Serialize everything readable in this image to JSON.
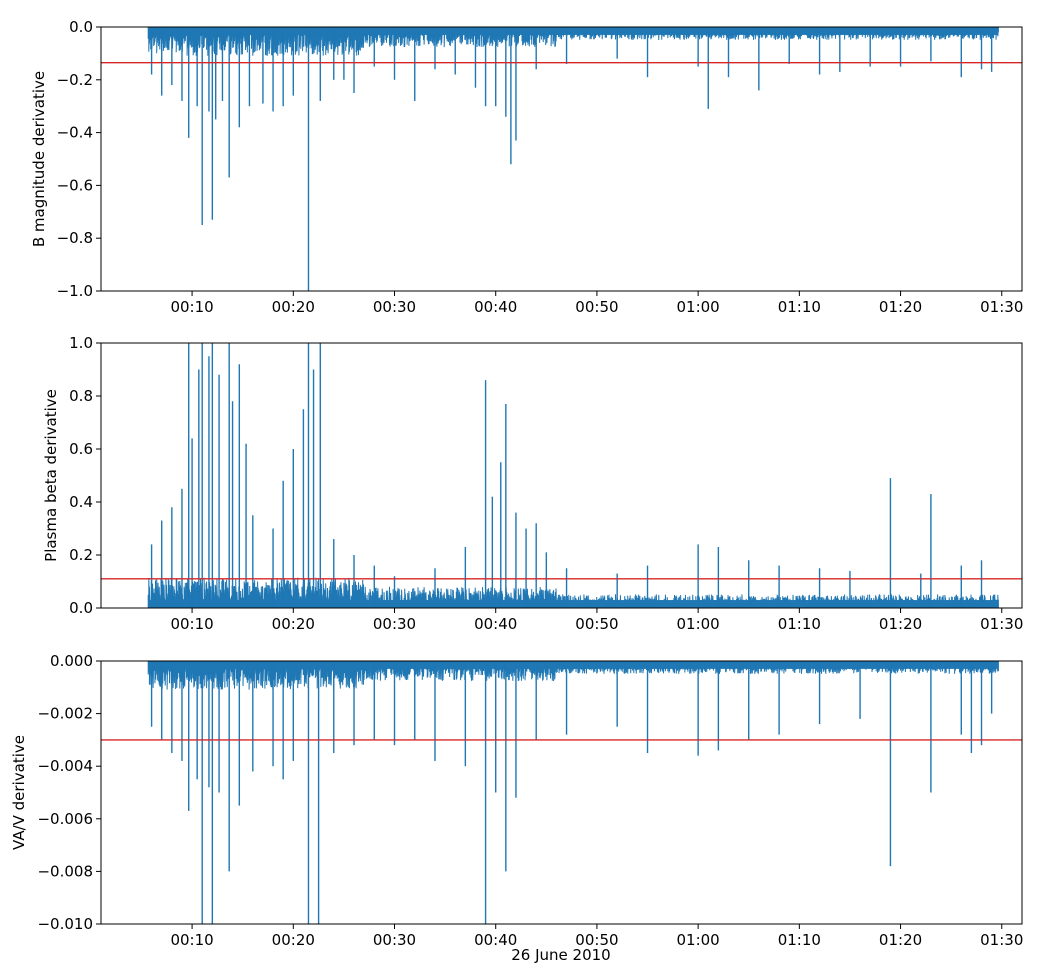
{
  "figure": {
    "xlabel": "26 June 2010"
  },
  "chart_data": [
    {
      "type": "line",
      "title": "",
      "xlabel": "",
      "ylabel": "B magnitude derivative",
      "xlim": [
        "00:01",
        "01:32"
      ],
      "ylim": [
        -1.0,
        0.0
      ],
      "yticks": [
        {
          "value": 0.0,
          "label": "0.0"
        },
        {
          "value": -0.2,
          "label": "−0.2"
        },
        {
          "value": -0.4,
          "label": "−0.4"
        },
        {
          "value": -0.6,
          "label": "−0.6"
        },
        {
          "value": -0.8,
          "label": "−0.8"
        },
        {
          "value": -1.0,
          "label": "−1.0"
        }
      ],
      "xticks": [
        "00:10",
        "00:20",
        "00:30",
        "00:40",
        "00:50",
        "01:00",
        "01:10",
        "01:20",
        "01:30"
      ],
      "grid": false,
      "series_color": "#1f77b4",
      "threshold": {
        "value": -0.135,
        "color": "#d62728"
      },
      "spikes": [
        {
          "x": "00:06",
          "y": -0.18
        },
        {
          "x": "00:07",
          "y": -0.26
        },
        {
          "x": "00:08",
          "y": -0.22
        },
        {
          "x": "00:09",
          "y": -0.28
        },
        {
          "x": "00:09:40",
          "y": -0.42
        },
        {
          "x": "00:10:30",
          "y": -0.3
        },
        {
          "x": "00:11",
          "y": -0.75
        },
        {
          "x": "00:11:40",
          "y": -0.32
        },
        {
          "x": "00:12",
          "y": -0.73
        },
        {
          "x": "00:12:20",
          "y": -0.35
        },
        {
          "x": "00:13",
          "y": -0.28
        },
        {
          "x": "00:13:40",
          "y": -0.57
        },
        {
          "x": "00:14:40",
          "y": -0.38
        },
        {
          "x": "00:15:40",
          "y": -0.3
        },
        {
          "x": "00:17",
          "y": -0.29
        },
        {
          "x": "00:18",
          "y": -0.32
        },
        {
          "x": "00:19",
          "y": -0.3
        },
        {
          "x": "00:20",
          "y": -0.26
        },
        {
          "x": "00:21:30",
          "y": -1.0
        },
        {
          "x": "00:22:40",
          "y": -0.28
        },
        {
          "x": "00:24",
          "y": -0.2
        },
        {
          "x": "00:25",
          "y": -0.2
        },
        {
          "x": "00:26",
          "y": -0.25
        },
        {
          "x": "00:28",
          "y": -0.15
        },
        {
          "x": "00:30",
          "y": -0.2
        },
        {
          "x": "00:32",
          "y": -0.28
        },
        {
          "x": "00:34",
          "y": -0.16
        },
        {
          "x": "00:36",
          "y": -0.18
        },
        {
          "x": "00:38",
          "y": -0.23
        },
        {
          "x": "00:39",
          "y": -0.3
        },
        {
          "x": "00:40",
          "y": -0.3
        },
        {
          "x": "00:41",
          "y": -0.34
        },
        {
          "x": "00:41:30",
          "y": -0.52
        },
        {
          "x": "00:42",
          "y": -0.43
        },
        {
          "x": "00:44",
          "y": -0.16
        },
        {
          "x": "00:47",
          "y": -0.14
        },
        {
          "x": "00:52",
          "y": -0.12
        },
        {
          "x": "00:55",
          "y": -0.19
        },
        {
          "x": "01:00",
          "y": -0.15
        },
        {
          "x": "01:01",
          "y": -0.31
        },
        {
          "x": "01:03",
          "y": -0.19
        },
        {
          "x": "01:06",
          "y": -0.24
        },
        {
          "x": "01:09",
          "y": -0.14
        },
        {
          "x": "01:12",
          "y": -0.18
        },
        {
          "x": "01:14",
          "y": -0.17
        },
        {
          "x": "01:17",
          "y": -0.15
        },
        {
          "x": "01:20",
          "y": -0.15
        },
        {
          "x": "01:23",
          "y": -0.13
        },
        {
          "x": "01:26",
          "y": -0.19
        },
        {
          "x": "01:28",
          "y": -0.16
        },
        {
          "x": "01:29",
          "y": -0.17
        }
      ]
    },
    {
      "type": "line",
      "title": "",
      "xlabel": "",
      "ylabel": "Plasma beta derivative",
      "xlim": [
        "00:01",
        "01:32"
      ],
      "ylim": [
        0.0,
        1.0
      ],
      "yticks": [
        {
          "value": 0.0,
          "label": "0.0"
        },
        {
          "value": 0.2,
          "label": "0.2"
        },
        {
          "value": 0.4,
          "label": "0.4"
        },
        {
          "value": 0.6,
          "label": "0.6"
        },
        {
          "value": 0.8,
          "label": "0.8"
        },
        {
          "value": 1.0,
          "label": "1.0"
        }
      ],
      "xticks": [
        "00:10",
        "00:20",
        "00:30",
        "00:40",
        "00:50",
        "01:00",
        "01:10",
        "01:20",
        "01:30"
      ],
      "grid": false,
      "series_color": "#1f77b4",
      "threshold": {
        "value": 0.11,
        "color": "#d62728"
      },
      "spikes": [
        {
          "x": "00:06",
          "y": 0.24
        },
        {
          "x": "00:07",
          "y": 0.33
        },
        {
          "x": "00:08",
          "y": 0.38
        },
        {
          "x": "00:09",
          "y": 0.45
        },
        {
          "x": "00:09:40",
          "y": 1.0
        },
        {
          "x": "00:10",
          "y": 0.64
        },
        {
          "x": "00:10:40",
          "y": 0.9
        },
        {
          "x": "00:11",
          "y": 1.0
        },
        {
          "x": "00:11:40",
          "y": 0.95
        },
        {
          "x": "00:12",
          "y": 1.0
        },
        {
          "x": "00:12:40",
          "y": 0.88
        },
        {
          "x": "00:13:40",
          "y": 1.0
        },
        {
          "x": "00:14",
          "y": 0.78
        },
        {
          "x": "00:14:40",
          "y": 0.92
        },
        {
          "x": "00:15:20",
          "y": 0.62
        },
        {
          "x": "00:16",
          "y": 0.35
        },
        {
          "x": "00:18",
          "y": 0.3
        },
        {
          "x": "00:19",
          "y": 0.48
        },
        {
          "x": "00:20",
          "y": 0.6
        },
        {
          "x": "00:21",
          "y": 0.75
        },
        {
          "x": "00:21:30",
          "y": 1.0
        },
        {
          "x": "00:22",
          "y": 0.9
        },
        {
          "x": "00:22:40",
          "y": 1.0
        },
        {
          "x": "00:24",
          "y": 0.26
        },
        {
          "x": "00:26",
          "y": 0.2
        },
        {
          "x": "00:28",
          "y": 0.16
        },
        {
          "x": "00:30",
          "y": 0.12
        },
        {
          "x": "00:34",
          "y": 0.15
        },
        {
          "x": "00:37",
          "y": 0.23
        },
        {
          "x": "00:39",
          "y": 0.86
        },
        {
          "x": "00:39:40",
          "y": 0.42
        },
        {
          "x": "00:40:30",
          "y": 0.55
        },
        {
          "x": "00:41",
          "y": 0.77
        },
        {
          "x": "00:42",
          "y": 0.36
        },
        {
          "x": "00:43",
          "y": 0.3
        },
        {
          "x": "00:44",
          "y": 0.32
        },
        {
          "x": "00:45",
          "y": 0.21
        },
        {
          "x": "00:47",
          "y": 0.15
        },
        {
          "x": "00:52",
          "y": 0.13
        },
        {
          "x": "00:55",
          "y": 0.16
        },
        {
          "x": "01:00",
          "y": 0.24
        },
        {
          "x": "01:02",
          "y": 0.23
        },
        {
          "x": "01:05",
          "y": 0.18
        },
        {
          "x": "01:08",
          "y": 0.16
        },
        {
          "x": "01:12",
          "y": 0.15
        },
        {
          "x": "01:15",
          "y": 0.14
        },
        {
          "x": "01:19",
          "y": 0.49
        },
        {
          "x": "01:22",
          "y": 0.13
        },
        {
          "x": "01:23",
          "y": 0.43
        },
        {
          "x": "01:26",
          "y": 0.16
        },
        {
          "x": "01:28",
          "y": 0.18
        }
      ]
    },
    {
      "type": "line",
      "title": "",
      "xlabel": "",
      "ylabel": "VA/V derivative",
      "xlim": [
        "00:01",
        "01:32"
      ],
      "ylim": [
        -0.01,
        0.0
      ],
      "yticks": [
        {
          "value": 0.0,
          "label": "0.000"
        },
        {
          "value": -0.002,
          "label": "−0.002"
        },
        {
          "value": -0.004,
          "label": "−0.004"
        },
        {
          "value": -0.006,
          "label": "−0.006"
        },
        {
          "value": -0.008,
          "label": "−0.008"
        },
        {
          "value": -0.01,
          "label": "−0.010"
        }
      ],
      "xticks": [
        "00:10",
        "00:20",
        "00:30",
        "00:40",
        "00:50",
        "01:00",
        "01:10",
        "01:20",
        "01:30"
      ],
      "grid": false,
      "series_color": "#1f77b4",
      "threshold": {
        "value": -0.003,
        "color": "#d62728"
      },
      "spikes": [
        {
          "x": "00:06",
          "y": -0.0025
        },
        {
          "x": "00:07",
          "y": -0.003
        },
        {
          "x": "00:08",
          "y": -0.0035
        },
        {
          "x": "00:09",
          "y": -0.0038
        },
        {
          "x": "00:09:40",
          "y": -0.0057
        },
        {
          "x": "00:10:30",
          "y": -0.0045
        },
        {
          "x": "00:11",
          "y": -0.01
        },
        {
          "x": "00:11:40",
          "y": -0.0048
        },
        {
          "x": "00:12",
          "y": -0.01
        },
        {
          "x": "00:12:40",
          "y": -0.005
        },
        {
          "x": "00:13:40",
          "y": -0.008
        },
        {
          "x": "00:14:40",
          "y": -0.0055
        },
        {
          "x": "00:16",
          "y": -0.0042
        },
        {
          "x": "00:18",
          "y": -0.004
        },
        {
          "x": "00:19",
          "y": -0.0045
        },
        {
          "x": "00:20",
          "y": -0.0038
        },
        {
          "x": "00:21:30",
          "y": -0.01
        },
        {
          "x": "00:22:30",
          "y": -0.01
        },
        {
          "x": "00:24",
          "y": -0.0035
        },
        {
          "x": "00:26",
          "y": -0.0032
        },
        {
          "x": "00:28",
          "y": -0.003
        },
        {
          "x": "00:30",
          "y": -0.0032
        },
        {
          "x": "00:32",
          "y": -0.003
        },
        {
          "x": "00:34",
          "y": -0.0038
        },
        {
          "x": "00:37",
          "y": -0.004
        },
        {
          "x": "00:39",
          "y": -0.01
        },
        {
          "x": "00:40",
          "y": -0.005
        },
        {
          "x": "00:41",
          "y": -0.008
        },
        {
          "x": "00:42",
          "y": -0.0052
        },
        {
          "x": "00:44",
          "y": -0.003
        },
        {
          "x": "00:47",
          "y": -0.0028
        },
        {
          "x": "00:52",
          "y": -0.0025
        },
        {
          "x": "00:55",
          "y": -0.0035
        },
        {
          "x": "01:00",
          "y": -0.0036
        },
        {
          "x": "01:02",
          "y": -0.0034
        },
        {
          "x": "01:05",
          "y": -0.003
        },
        {
          "x": "01:08",
          "y": -0.0028
        },
        {
          "x": "01:12",
          "y": -0.0024
        },
        {
          "x": "01:16",
          "y": -0.0022
        },
        {
          "x": "01:19",
          "y": -0.0078
        },
        {
          "x": "01:23",
          "y": -0.005
        },
        {
          "x": "01:26",
          "y": -0.0028
        },
        {
          "x": "01:27",
          "y": -0.0035
        },
        {
          "x": "01:28",
          "y": -0.0032
        },
        {
          "x": "01:29",
          "y": -0.002
        }
      ]
    }
  ]
}
